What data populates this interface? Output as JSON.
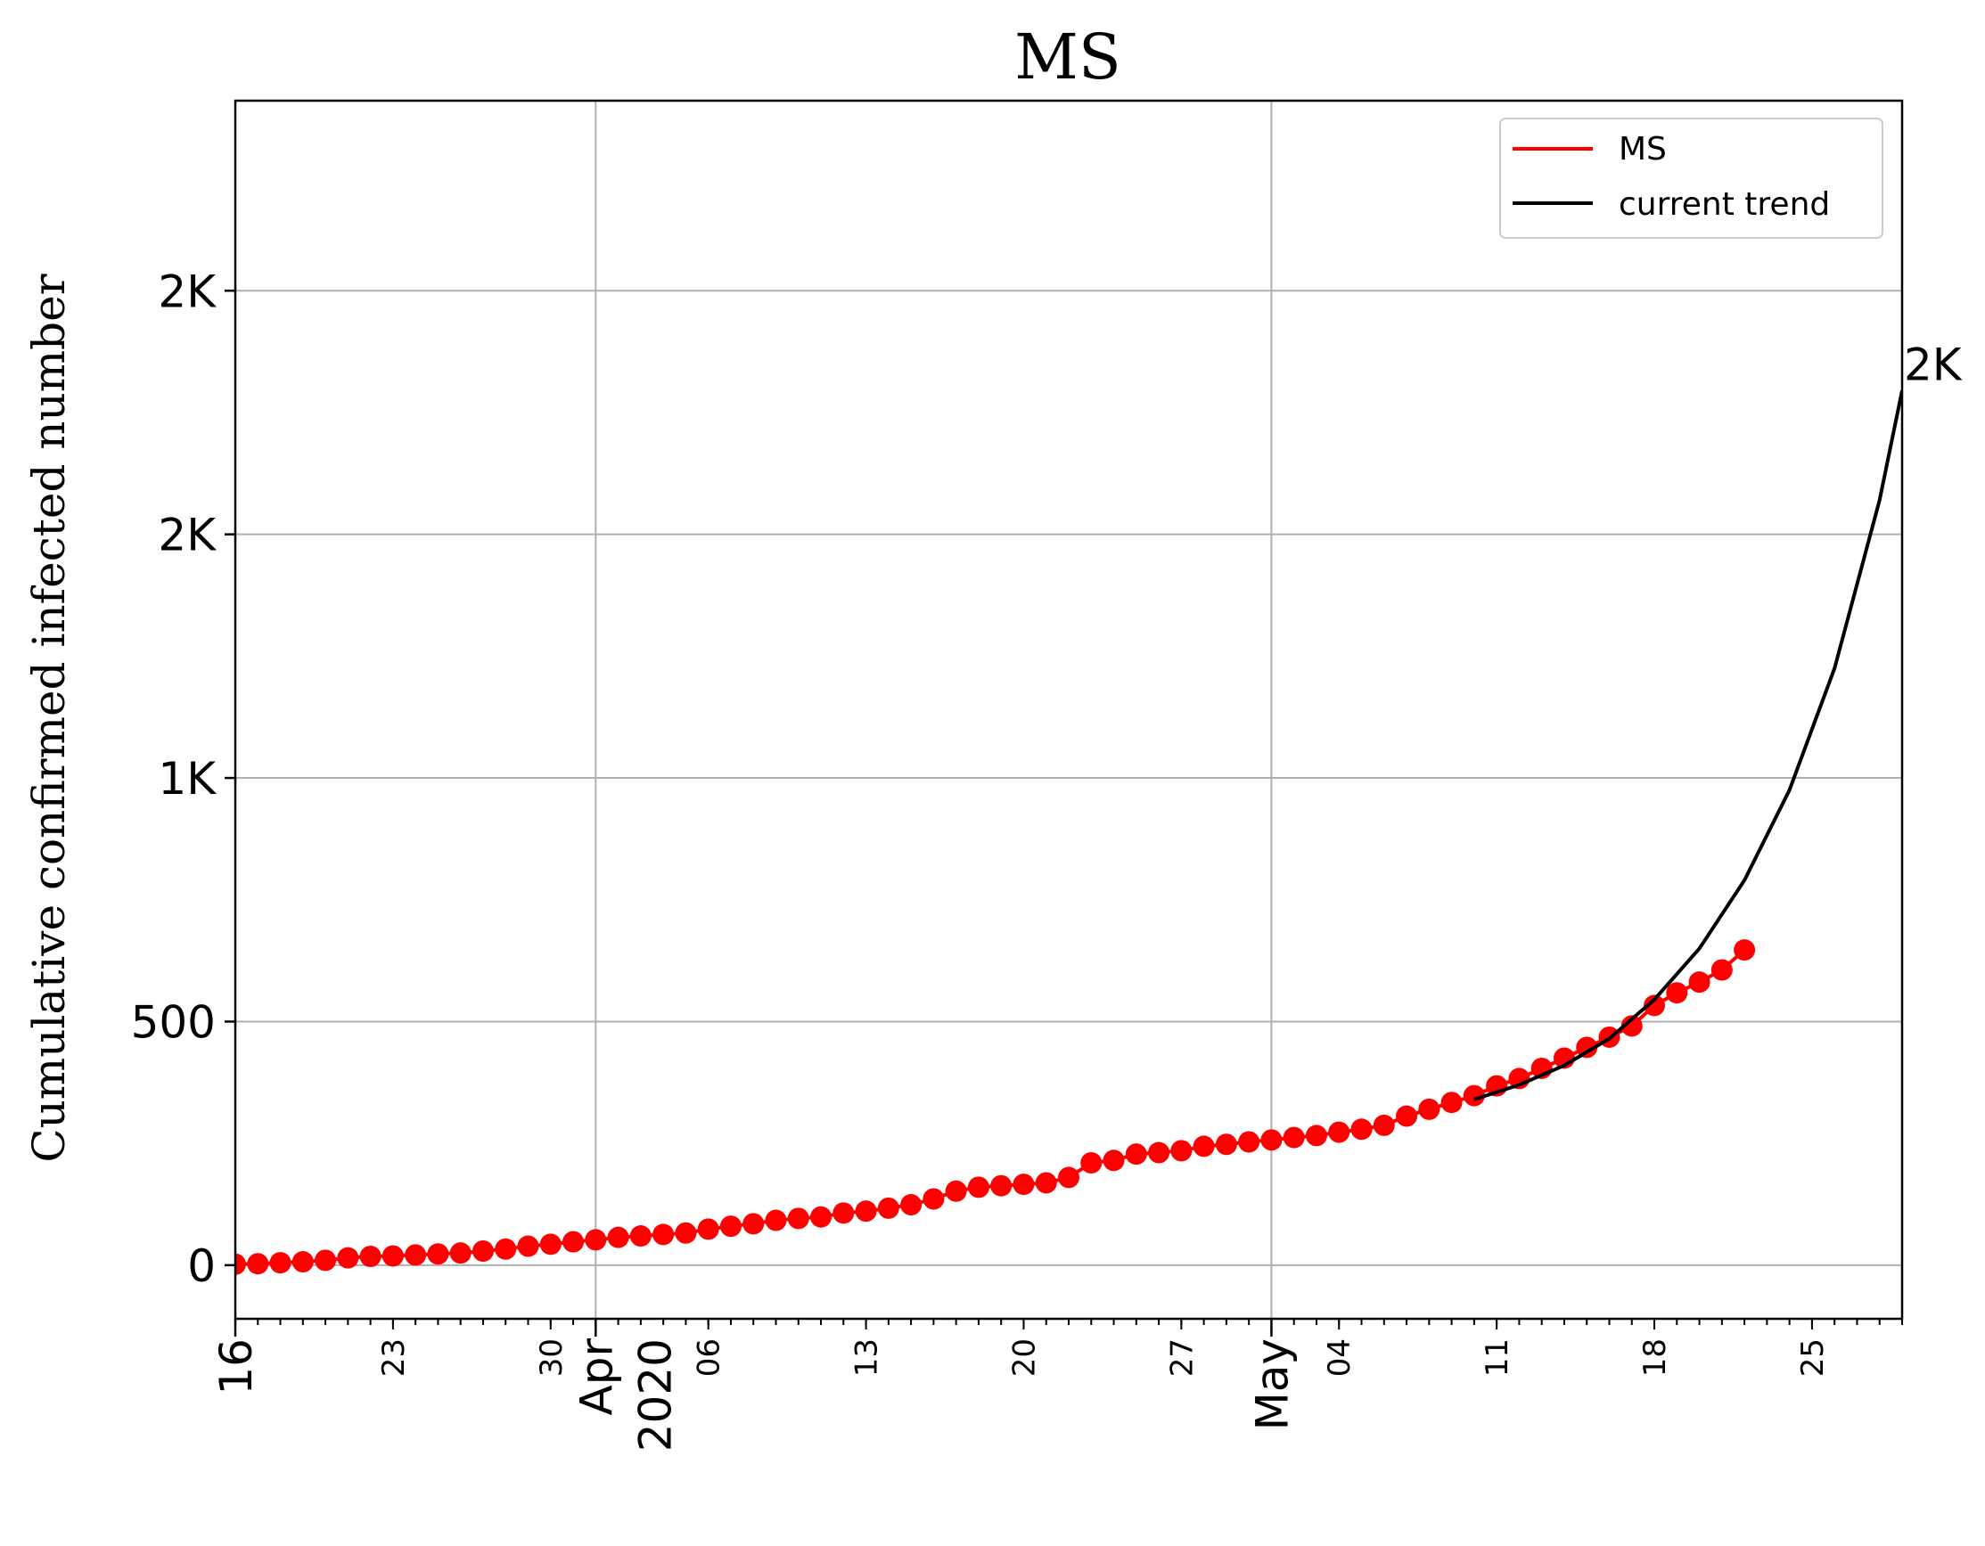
{
  "chart_data": {
    "type": "line",
    "title": "MS",
    "xlabel": "",
    "ylabel": "Cumulative confirmed infected number",
    "x_range": [
      "2020-03-16",
      "2020-05-29"
    ],
    "ylim": [
      -110,
      2390
    ],
    "grid": true,
    "legend_position": "top-right",
    "y_ticks": [
      {
        "value": 0,
        "label": "0"
      },
      {
        "value": 500,
        "label": "500"
      },
      {
        "value": 1000,
        "label": "1K"
      },
      {
        "value": 1500,
        "label": "2K"
      },
      {
        "value": 2000,
        "label": "2K"
      }
    ],
    "x_ticks_major": [
      {
        "date": "2020-03-16",
        "label": "16"
      },
      {
        "date": "2020-04-01",
        "label": "Apr\n2020"
      },
      {
        "date": "2020-05-01",
        "label": "May"
      }
    ],
    "x_ticks_minor": [
      {
        "date": "2020-03-23",
        "label": "23"
      },
      {
        "date": "2020-03-30",
        "label": "30"
      },
      {
        "date": "2020-04-06",
        "label": "06"
      },
      {
        "date": "2020-04-13",
        "label": "13"
      },
      {
        "date": "2020-04-20",
        "label": "20"
      },
      {
        "date": "2020-04-27",
        "label": "27"
      },
      {
        "date": "2020-05-04",
        "label": "04"
      },
      {
        "date": "2020-05-11",
        "label": "11"
      },
      {
        "date": "2020-05-18",
        "label": "18"
      },
      {
        "date": "2020-05-25",
        "label": "25"
      }
    ],
    "series": [
      {
        "name": "MS",
        "color": "#ff0000",
        "marker": "circle",
        "x": [
          "2020-03-16",
          "2020-03-17",
          "2020-03-18",
          "2020-03-19",
          "2020-03-20",
          "2020-03-21",
          "2020-03-22",
          "2020-03-23",
          "2020-03-24",
          "2020-03-25",
          "2020-03-26",
          "2020-03-27",
          "2020-03-28",
          "2020-03-29",
          "2020-03-30",
          "2020-03-31",
          "2020-04-01",
          "2020-04-02",
          "2020-04-03",
          "2020-04-04",
          "2020-04-05",
          "2020-04-06",
          "2020-04-07",
          "2020-04-08",
          "2020-04-09",
          "2020-04-10",
          "2020-04-11",
          "2020-04-12",
          "2020-04-13",
          "2020-04-14",
          "2020-04-15",
          "2020-04-16",
          "2020-04-17",
          "2020-04-18",
          "2020-04-19",
          "2020-04-20",
          "2020-04-21",
          "2020-04-22",
          "2020-04-23",
          "2020-04-24",
          "2020-04-25",
          "2020-04-26",
          "2020-04-27",
          "2020-04-28",
          "2020-04-29",
          "2020-04-30",
          "2020-05-01",
          "2020-05-02",
          "2020-05-03",
          "2020-05-04",
          "2020-05-05",
          "2020-05-06",
          "2020-05-07",
          "2020-05-08",
          "2020-05-09",
          "2020-05-10",
          "2020-05-11",
          "2020-05-12",
          "2020-05-13",
          "2020-05-14",
          "2020-05-15",
          "2020-05-16",
          "2020-05-17",
          "2020-05-18",
          "2020-05-19",
          "2020-05-20",
          "2020-05-21",
          "2020-05-22"
        ],
        "y": [
          2,
          3,
          5,
          7,
          10,
          15,
          18,
          19,
          21,
          23,
          25,
          29,
          33,
          39,
          43,
          48,
          52,
          57,
          60,
          63,
          66,
          74,
          80,
          85,
          92,
          96,
          99,
          107,
          111,
          117,
          124,
          136,
          152,
          160,
          163,
          166,
          169,
          180,
          210,
          215,
          228,
          231,
          235,
          244,
          248,
          253,
          257,
          262,
          266,
          273,
          279,
          287,
          306,
          320,
          334,
          348,
          368,
          383,
          404,
          425,
          447,
          468,
          491,
          533,
          559,
          581,
          606,
          647
        ]
      },
      {
        "name": "current trend",
        "color": "#000000",
        "marker": "none",
        "x": [
          "2020-05-10",
          "2020-05-12",
          "2020-05-14",
          "2020-05-16",
          "2020-05-18",
          "2020-05-20",
          "2020-05-22",
          "2020-05-24",
          "2020-05-26",
          "2020-05-28",
          "2020-05-29"
        ],
        "y": [
          340,
          370,
          410,
          465,
          545,
          650,
          790,
          975,
          1225,
          1570,
          1795
        ]
      }
    ],
    "annotations": [
      {
        "text": "2K",
        "attach": "end of current trend"
      }
    ]
  }
}
